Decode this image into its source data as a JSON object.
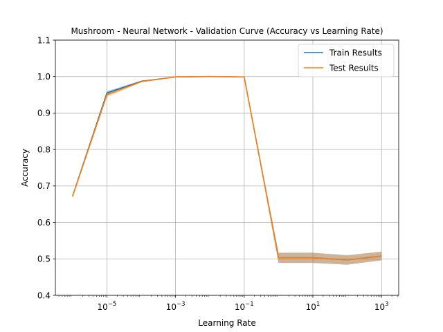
{
  "chart_data": {
    "type": "line",
    "title": "Mushroom - Neural Network - Validation Curve (Accuracy vs Learning Rate)",
    "xlabel": "Learning Rate",
    "ylabel": "Accuracy",
    "x_scale": "log",
    "x": [
      1e-06,
      1e-05,
      0.0001,
      0.001,
      0.01,
      0.1,
      1,
      10,
      100,
      1000
    ],
    "xticks": [
      {
        "value": 1e-05,
        "base": "10",
        "exp": "−5"
      },
      {
        "value": 0.001,
        "base": "10",
        "exp": "−3"
      },
      {
        "value": 0.1,
        "base": "10",
        "exp": "−1"
      },
      {
        "value": 10,
        "base": "10",
        "exp": "1"
      },
      {
        "value": 1000,
        "base": "10",
        "exp": "3"
      }
    ],
    "ylim": [
      0.4,
      1.1
    ],
    "yticks": [
      "0.4",
      "0.5",
      "0.6",
      "0.7",
      "0.8",
      "0.9",
      "1.0",
      "1.1"
    ],
    "grid": true,
    "legend_position": "top-right",
    "series": [
      {
        "name": "Train Results",
        "color": "#1f77b4",
        "values": [
          0.672,
          0.955,
          0.987,
          0.999,
          1.0,
          0.999,
          0.503,
          0.503,
          0.497,
          0.508
        ],
        "band": [
          0.002,
          0.005,
          0.002,
          0.001,
          0.001,
          0.001,
          0.014,
          0.014,
          0.013,
          0.012
        ]
      },
      {
        "name": "Test Results",
        "color": "#ff7f0e",
        "values": [
          0.671,
          0.95,
          0.986,
          0.999,
          1.0,
          0.999,
          0.503,
          0.503,
          0.497,
          0.508
        ],
        "band": [
          0.002,
          0.006,
          0.002,
          0.001,
          0.001,
          0.001,
          0.014,
          0.014,
          0.013,
          0.012
        ]
      }
    ]
  }
}
